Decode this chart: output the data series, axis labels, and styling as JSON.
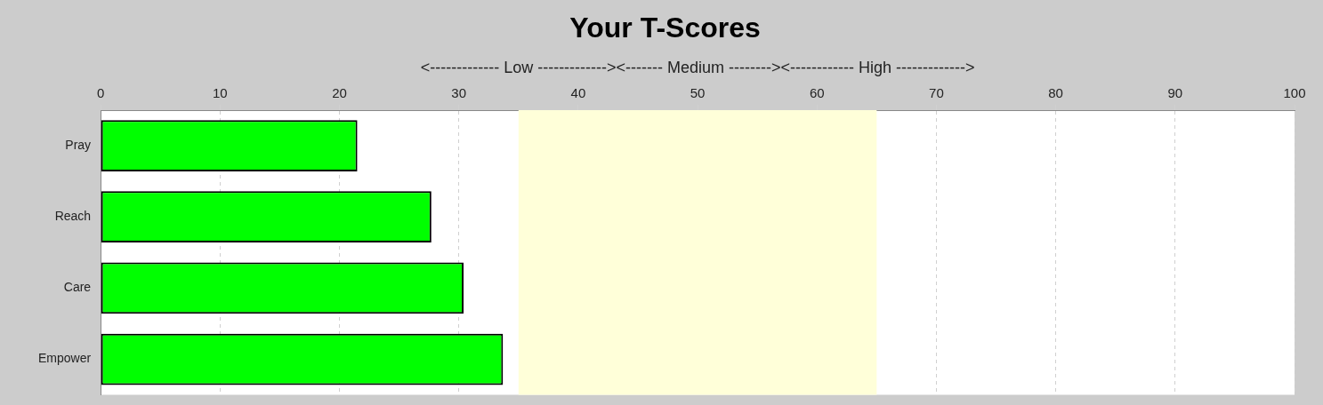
{
  "chart_data": {
    "type": "bar",
    "orientation": "horizontal",
    "title": "Your T-Scores",
    "xlabel": "<------------- Low -------------><------- Medium --------><------------ High ------------->",
    "categories": [
      "Pray",
      "Reach",
      "Care",
      "Empower"
    ],
    "values": [
      21.5,
      27.7,
      30.4,
      33.7
    ],
    "color": "#00ff00",
    "xlim": [
      0,
      100
    ],
    "xticks": [
      0,
      10,
      20,
      30,
      40,
      50,
      60,
      70,
      80,
      90,
      100
    ],
    "grid": "x",
    "bands": [
      {
        "axis": "x",
        "from": 35,
        "to": 65,
        "color": "#ffffd9"
      }
    ]
  }
}
